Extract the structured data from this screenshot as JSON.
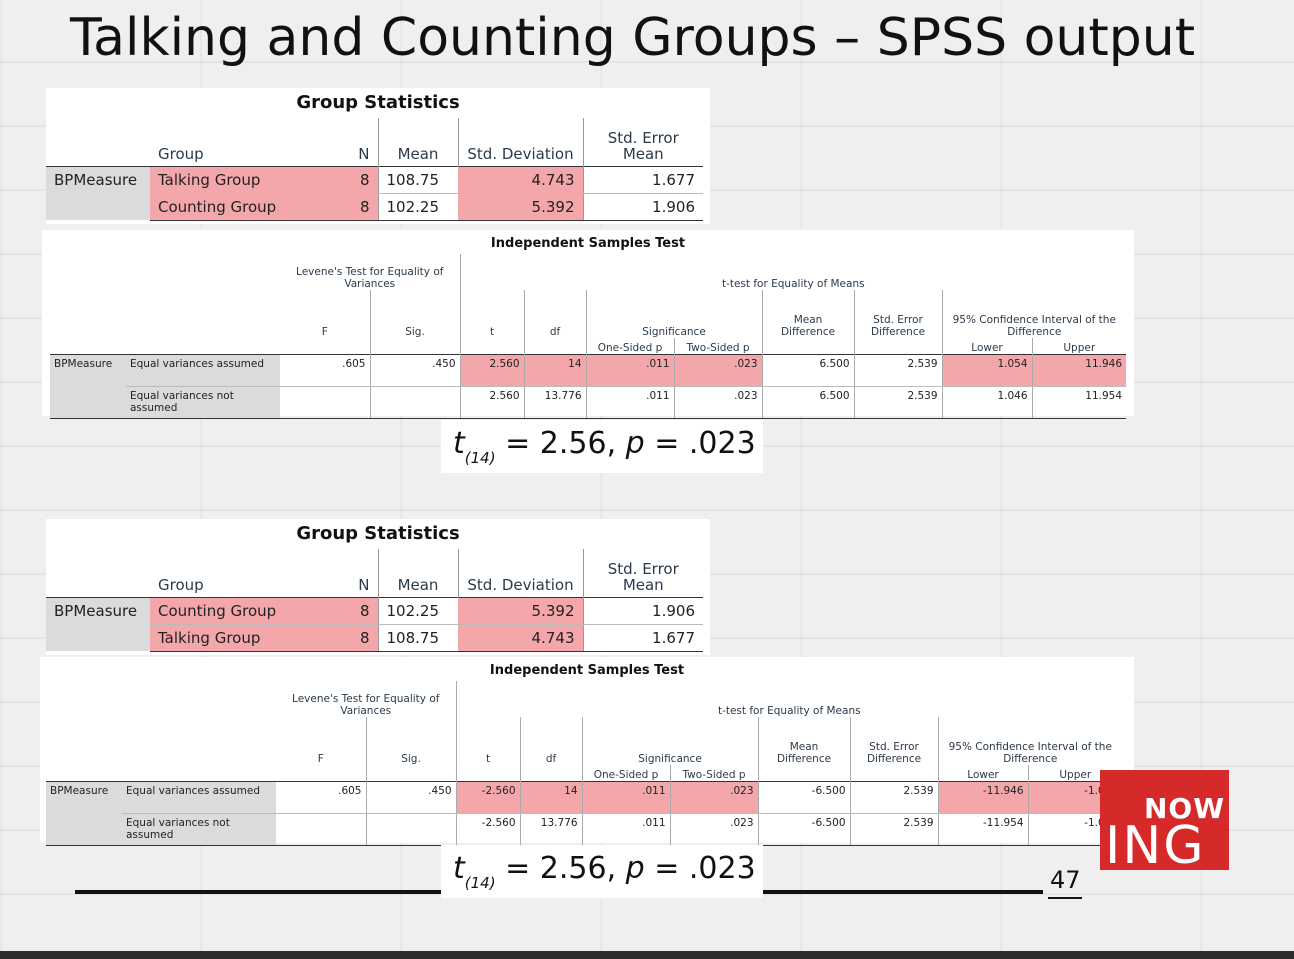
{
  "title": "Talking and Counting Groups – SPSS output",
  "page_number": "47",
  "logo": {
    "line1": "NOW",
    "line2": "ING",
    "color": "#d62a2a"
  },
  "accent_pink": "#f4a7ab",
  "result_text": {
    "t": "t",
    "df": "(14)",
    "rest_a": " = 2.56, ",
    "p": "p",
    "rest_b": " = .023"
  },
  "panels": [
    {
      "group_stats": {
        "caption": "Group Statistics",
        "headers": {
          "group": "Group",
          "n": "N",
          "mean": "Mean",
          "sd": "Std. Deviation",
          "se": "Std. Error Mean"
        },
        "row_label": "BPMeasure",
        "rows": [
          {
            "group": "Talking Group",
            "n": "8",
            "mean": "108.75",
            "sd": "4.743",
            "se": "1.677"
          },
          {
            "group": "Counting Group",
            "n": "8",
            "mean": "102.25",
            "sd": "5.392",
            "se": "1.906"
          }
        ]
      },
      "ist": {
        "caption": "Independent Samples Test",
        "levene_header": "Levene's Test for Equality of Variances",
        "ttest_header": "t-test for Equality of Means",
        "significance": "Significance",
        "ci_header": "95% Confidence Interval of the Difference",
        "cols": {
          "F": "F",
          "sig": "Sig.",
          "t": "t",
          "df": "df",
          "one": "One-Sided p",
          "two": "Two-Sided p",
          "md": "Mean Difference",
          "sed": "Std. Error Difference",
          "lower": "Lower",
          "upper": "Upper"
        },
        "row_label": "BPMeasure",
        "rows": [
          {
            "label": "Equal variances assumed",
            "F": ".605",
            "sig": ".450",
            "t": "2.560",
            "df": "14",
            "one": ".011",
            "two": ".023",
            "md": "6.500",
            "sed": "2.539",
            "lower": "1.054",
            "upper": "11.946"
          },
          {
            "label": "Equal variances not assumed",
            "F": "",
            "sig": "",
            "t": "2.560",
            "df": "13.776",
            "one": ".011",
            "two": ".023",
            "md": "6.500",
            "sed": "2.539",
            "lower": "1.046",
            "upper": "11.954"
          }
        ]
      }
    },
    {
      "group_stats": {
        "caption": "Group Statistics",
        "headers": {
          "group": "Group",
          "n": "N",
          "mean": "Mean",
          "sd": "Std. Deviation",
          "se": "Std. Error Mean"
        },
        "row_label": "BPMeasure",
        "rows": [
          {
            "group": "Counting Group",
            "n": "8",
            "mean": "102.25",
            "sd": "5.392",
            "se": "1.906"
          },
          {
            "group": "Talking Group",
            "n": "8",
            "mean": "108.75",
            "sd": "4.743",
            "se": "1.677"
          }
        ]
      },
      "ist": {
        "caption": "Independent Samples Test",
        "levene_header": "Levene's Test for Equality of Variances",
        "ttest_header": "t-test for Equality of Means",
        "significance": "Significance",
        "ci_header": "95% Confidence Interval of the Difference",
        "cols": {
          "F": "F",
          "sig": "Sig.",
          "t": "t",
          "df": "df",
          "one": "One-Sided p",
          "two": "Two-Sided p",
          "md": "Mean Difference",
          "sed": "Std. Error Difference",
          "lower": "Lower",
          "upper": "Upper"
        },
        "row_label": "BPMeasure",
        "rows": [
          {
            "label": "Equal variances assumed",
            "F": ".605",
            "sig": ".450",
            "t": "-2.560",
            "df": "14",
            "one": ".011",
            "two": ".023",
            "md": "-6.500",
            "sed": "2.539",
            "lower": "-11.946",
            "upper": "-1.054"
          },
          {
            "label": "Equal variances not assumed",
            "F": "",
            "sig": "",
            "t": "-2.560",
            "df": "13.776",
            "one": ".011",
            "two": ".023",
            "md": "-6.500",
            "sed": "2.539",
            "lower": "-11.954",
            "upper": "-1.046"
          }
        ]
      }
    }
  ]
}
